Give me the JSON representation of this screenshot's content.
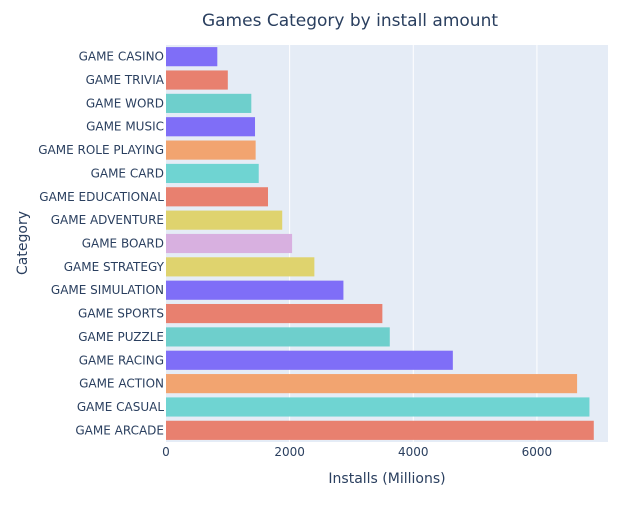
{
  "chart_data": {
    "type": "bar",
    "orientation": "horizontal",
    "title": "Games Category by install amount",
    "xlabel": "Installs (Millions)",
    "ylabel": "Category",
    "xlim": [
      0,
      7150
    ],
    "xticks": [
      0,
      2000,
      4000,
      6000
    ],
    "xtick_labels": [
      "0",
      "2000",
      "4000",
      "6000"
    ],
    "grid": true,
    "legend": "none",
    "plot_bgcolor": "#e5ecf6",
    "categories": [
      "GAME CASINO",
      "GAME TRIVIA",
      "GAME WORD",
      "GAME MUSIC",
      "GAME ROLE PLAYING",
      "GAME CARD",
      "GAME EDUCATIONAL",
      "GAME ADVENTURE",
      "GAME BOARD",
      "GAME STRATEGY",
      "GAME SIMULATION",
      "GAME SPORTS",
      "GAME PUZZLE",
      "GAME RACING",
      "GAME ACTION",
      "GAME CASUAL",
      "GAME ARCADE"
    ],
    "values": [
      830,
      1000,
      1380,
      1440,
      1450,
      1500,
      1650,
      1880,
      2040,
      2400,
      2870,
      3500,
      3620,
      4640,
      6650,
      6850,
      6920
    ],
    "colors": [
      "#7f6ef7",
      "#e8806f",
      "#6ecfcc",
      "#7f6ef7",
      "#f2a470",
      "#6fd4d2",
      "#e8806f",
      "#dfd36e",
      "#d8b0e0",
      "#dfd36e",
      "#7f6ef7",
      "#e8806f",
      "#6ecfcc",
      "#7f6ef7",
      "#f2a470",
      "#6fd4d2",
      "#e8806f"
    ]
  }
}
